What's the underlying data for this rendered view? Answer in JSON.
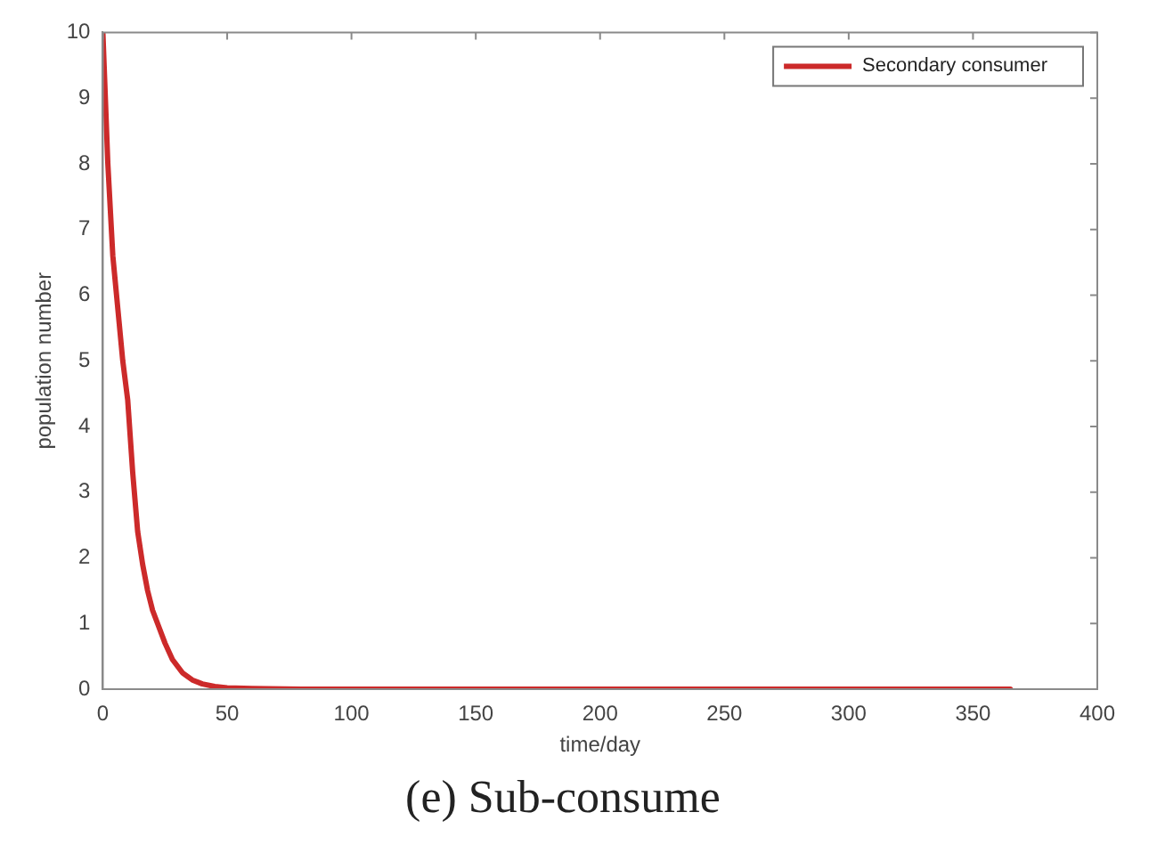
{
  "chart_data": {
    "type": "line",
    "title": "(e) Sub-consume",
    "xlabel": "time/day",
    "ylabel": "population number",
    "series": [
      {
        "name": "Secondary consumer",
        "color": "#cc2a2a",
        "x": [
          0,
          2,
          4,
          6,
          8,
          10,
          12,
          14,
          16,
          18,
          20,
          22,
          25,
          28,
          32,
          36,
          40,
          45,
          50,
          60,
          80,
          120,
          200,
          300,
          365
        ],
        "values": [
          10,
          8,
          6.6,
          5.8,
          5,
          4.4,
          3.3,
          2.4,
          1.9,
          1.5,
          1.2,
          1,
          0.7,
          0.45,
          0.25,
          0.14,
          0.08,
          0.04,
          0.02,
          0.01,
          0,
          0,
          0,
          0,
          0
        ]
      }
    ],
    "xlim": [
      0,
      400
    ],
    "xticks": [
      0,
      50,
      100,
      150,
      200,
      250,
      300,
      350,
      400
    ],
    "ylim": [
      0,
      10
    ],
    "yticks": [
      0,
      1,
      2,
      3,
      4,
      5,
      6,
      7,
      8,
      9,
      10
    ],
    "grid": false,
    "legend": "top right",
    "marker": "none",
    "line_style": "solid"
  }
}
